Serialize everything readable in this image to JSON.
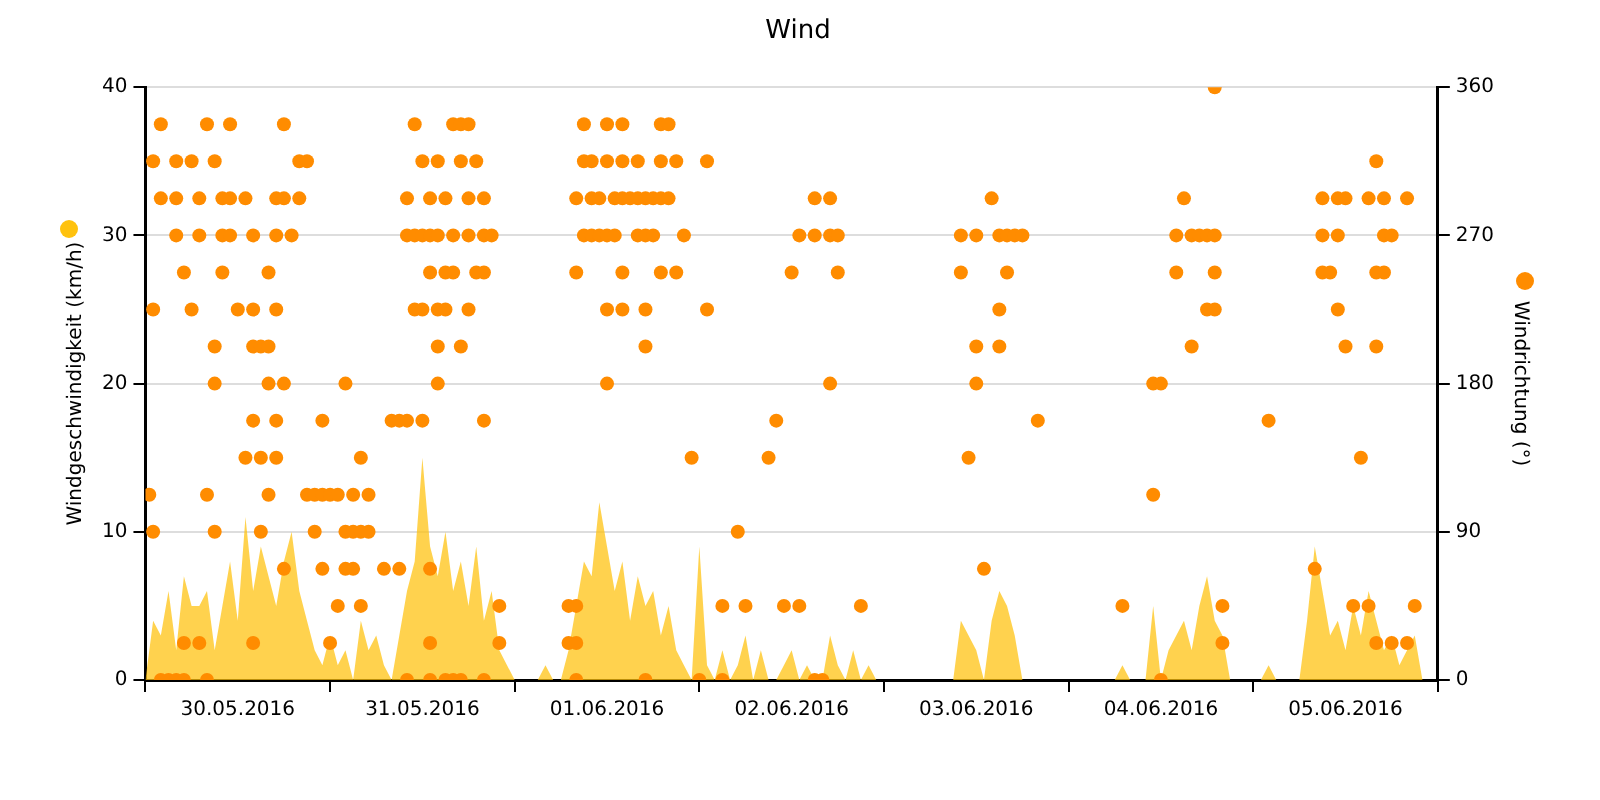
{
  "chart_data": {
    "type": "area",
    "title": "Wind",
    "ylabel": "Windgeschwindigkeit (km/h)",
    "y2label": "Windrichtung (°)",
    "xlim": [
      "2016-05-30T00:00",
      "2016-06-06T00:00"
    ],
    "xticks": [
      {
        "value": "2016-05-30T00:00",
        "label": null
      },
      {
        "value": "2016-05-30T12:00",
        "label": "30.05.2016"
      },
      {
        "value": "2016-05-31T00:00",
        "label": null
      },
      {
        "value": "2016-05-31T12:00",
        "label": "31.05.2016"
      },
      {
        "value": "2016-06-01T00:00",
        "label": null
      },
      {
        "value": "2016-06-01T12:00",
        "label": "01.06.2016"
      },
      {
        "value": "2016-06-02T00:00",
        "label": null
      },
      {
        "value": "2016-06-02T12:00",
        "label": "02.06.2016"
      },
      {
        "value": "2016-06-03T00:00",
        "label": null
      },
      {
        "value": "2016-06-03T12:00",
        "label": "03.06.2016"
      },
      {
        "value": "2016-06-04T00:00",
        "label": null
      },
      {
        "value": "2016-06-04T12:00",
        "label": "04.06.2016"
      },
      {
        "value": "2016-06-05T00:00",
        "label": null
      },
      {
        "value": "2016-06-05T12:00",
        "label": "05.06.2016"
      },
      {
        "value": "2016-06-06T00:00",
        "label": null
      }
    ],
    "ylim": [
      0,
      40
    ],
    "yticks": [
      0,
      10,
      20,
      30,
      40
    ],
    "y2lim": [
      0,
      360
    ],
    "y2ticks": [
      0,
      90,
      180,
      270,
      360
    ],
    "grid": "y",
    "legend": false,
    "x": [
      "2016-05-30T00:00",
      "2016-05-30T01:00",
      "2016-05-30T02:00",
      "2016-05-30T03:00",
      "2016-05-30T04:00",
      "2016-05-30T05:00",
      "2016-05-30T06:00",
      "2016-05-30T07:00",
      "2016-05-30T08:00",
      "2016-05-30T09:00",
      "2016-05-30T10:00",
      "2016-05-30T11:00",
      "2016-05-30T12:00",
      "2016-05-30T13:00",
      "2016-05-30T14:00",
      "2016-05-30T15:00",
      "2016-05-30T16:00",
      "2016-05-30T17:00",
      "2016-05-30T18:00",
      "2016-05-30T19:00",
      "2016-05-30T20:00",
      "2016-05-30T21:00",
      "2016-05-30T22:00",
      "2016-05-30T23:00",
      "2016-05-31T00:00",
      "2016-05-31T01:00",
      "2016-05-31T02:00",
      "2016-05-31T03:00",
      "2016-05-31T04:00",
      "2016-05-31T05:00",
      "2016-05-31T06:00",
      "2016-05-31T07:00",
      "2016-05-31T08:00",
      "2016-05-31T09:00",
      "2016-05-31T10:00",
      "2016-05-31T11:00",
      "2016-05-31T12:00",
      "2016-05-31T13:00",
      "2016-05-31T14:00",
      "2016-05-31T15:00",
      "2016-05-31T16:00",
      "2016-05-31T17:00",
      "2016-05-31T18:00",
      "2016-05-31T19:00",
      "2016-05-31T20:00",
      "2016-05-31T21:00",
      "2016-05-31T22:00",
      "2016-05-31T23:00",
      "2016-06-01T00:00",
      "2016-06-01T01:00",
      "2016-06-01T02:00",
      "2016-06-01T03:00",
      "2016-06-01T04:00",
      "2016-06-01T05:00",
      "2016-06-01T06:00",
      "2016-06-01T07:00",
      "2016-06-01T08:00",
      "2016-06-01T09:00",
      "2016-06-01T10:00",
      "2016-06-01T11:00",
      "2016-06-01T12:00",
      "2016-06-01T13:00",
      "2016-06-01T14:00",
      "2016-06-01T15:00",
      "2016-06-01T16:00",
      "2016-06-01T17:00",
      "2016-06-01T18:00",
      "2016-06-01T19:00",
      "2016-06-01T20:00",
      "2016-06-01T21:00",
      "2016-06-01T22:00",
      "2016-06-01T23:00",
      "2016-06-02T00:00",
      "2016-06-02T01:00",
      "2016-06-02T02:00",
      "2016-06-02T03:00",
      "2016-06-02T04:00",
      "2016-06-02T05:00",
      "2016-06-02T06:00",
      "2016-06-02T07:00",
      "2016-06-02T08:00",
      "2016-06-02T09:00",
      "2016-06-02T10:00",
      "2016-06-02T11:00",
      "2016-06-02T12:00",
      "2016-06-02T13:00",
      "2016-06-02T14:00",
      "2016-06-02T15:00",
      "2016-06-02T16:00",
      "2016-06-02T17:00",
      "2016-06-02T18:00",
      "2016-06-02T19:00",
      "2016-06-02T20:00",
      "2016-06-02T21:00",
      "2016-06-02T22:00",
      "2016-06-02T23:00",
      "2016-06-03T00:00",
      "2016-06-03T01:00",
      "2016-06-03T02:00",
      "2016-06-03T03:00",
      "2016-06-03T04:00",
      "2016-06-03T05:00",
      "2016-06-03T06:00",
      "2016-06-03T07:00",
      "2016-06-03T08:00",
      "2016-06-03T09:00",
      "2016-06-03T10:00",
      "2016-06-03T11:00",
      "2016-06-03T12:00",
      "2016-06-03T13:00",
      "2016-06-03T14:00",
      "2016-06-03T15:00",
      "2016-06-03T16:00",
      "2016-06-03T17:00",
      "2016-06-03T18:00",
      "2016-06-03T19:00",
      "2016-06-03T20:00",
      "2016-06-03T21:00",
      "2016-06-03T22:00",
      "2016-06-03T23:00",
      "2016-06-04T00:00",
      "2016-06-04T01:00",
      "2016-06-04T02:00",
      "2016-06-04T03:00",
      "2016-06-04T04:00",
      "2016-06-04T05:00",
      "2016-06-04T06:00",
      "2016-06-04T07:00",
      "2016-06-04T08:00",
      "2016-06-04T09:00",
      "2016-06-04T10:00",
      "2016-06-04T11:00",
      "2016-06-04T12:00",
      "2016-06-04T13:00",
      "2016-06-04T14:00",
      "2016-06-04T15:00",
      "2016-06-04T16:00",
      "2016-06-04T17:00",
      "2016-06-04T18:00",
      "2016-06-04T19:00",
      "2016-06-04T20:00",
      "2016-06-04T21:00",
      "2016-06-04T22:00",
      "2016-06-04T23:00",
      "2016-06-05T00:00",
      "2016-06-05T01:00",
      "2016-06-05T02:00",
      "2016-06-05T03:00",
      "2016-06-05T04:00",
      "2016-06-05T05:00",
      "2016-06-05T06:00",
      "2016-06-05T07:00",
      "2016-06-05T08:00",
      "2016-06-05T09:00",
      "2016-06-05T10:00",
      "2016-06-05T11:00",
      "2016-06-05T12:00",
      "2016-06-05T13:00",
      "2016-06-05T14:00",
      "2016-06-05T15:00",
      "2016-06-05T16:00",
      "2016-06-05T17:00",
      "2016-06-05T18:00",
      "2016-06-05T19:00",
      "2016-06-05T20:00",
      "2016-06-05T21:00",
      "2016-06-05T22:00",
      "2016-06-05T23:00"
    ],
    "series": [
      {
        "color": "#ffc20e",
        "values": [
          0,
          4,
          3,
          6,
          2,
          7,
          5,
          5,
          6,
          2,
          5,
          8,
          4,
          11,
          6,
          9,
          7,
          5,
          8,
          10,
          6,
          4,
          2,
          1,
          3,
          1,
          2,
          0,
          4,
          2,
          3,
          1,
          0,
          3,
          6,
          8,
          15,
          9,
          7,
          10,
          6,
          8,
          5,
          9,
          4,
          6,
          2,
          1,
          0,
          0,
          0,
          0,
          1,
          0,
          0,
          2,
          5,
          8,
          7,
          12,
          9,
          6,
          8,
          4,
          7,
          5,
          6,
          3,
          5,
          2,
          1,
          0,
          9,
          1,
          0,
          2,
          0,
          1,
          3,
          0,
          2,
          0,
          0,
          1,
          2,
          0,
          1,
          0,
          0,
          3,
          1,
          0,
          2,
          0,
          1,
          0,
          0,
          0,
          0,
          0,
          0,
          0,
          0,
          0,
          0,
          0,
          4,
          3,
          2,
          0,
          4,
          6,
          5,
          3,
          0,
          0,
          0,
          0,
          0,
          0,
          0,
          0,
          0,
          0,
          0,
          0,
          0,
          1,
          0,
          0,
          0,
          5,
          0,
          2,
          3,
          4,
          2,
          5,
          7,
          4,
          3,
          0,
          0,
          0,
          0,
          0,
          1,
          0,
          0,
          0,
          0,
          4,
          9,
          6,
          3,
          4,
          2,
          5,
          3,
          6,
          4,
          2,
          3,
          1,
          2,
          3,
          0,
          0
        ]
      },
      {
        "type": "scatter",
        "axis": "y2",
        "marker": "circle",
        "color": "#ff8c00",
        "x": [
          "2016-05-30T02:00",
          "2016-05-30T08:00",
          "2016-05-30T11:00",
          "2016-05-30T18:00",
          "2016-05-31T11:00",
          "2016-05-31T16:00",
          "2016-05-31T17:00",
          "2016-05-31T18:00",
          "2016-06-01T09:00",
          "2016-06-01T12:00",
          "2016-06-01T14:00",
          "2016-06-01T19:00",
          "2016-06-01T20:00",
          "2016-05-30T01:00",
          "2016-05-30T04:00",
          "2016-05-30T06:00",
          "2016-05-30T09:00",
          "2016-05-30T20:00",
          "2016-05-30T21:00",
          "2016-05-31T12:00",
          "2016-05-31T14:00",
          "2016-05-31T17:00",
          "2016-05-31T19:00",
          "2016-06-01T09:00",
          "2016-06-01T10:00",
          "2016-06-01T12:00",
          "2016-06-01T14:00",
          "2016-06-01T16:00",
          "2016-06-01T19:00",
          "2016-06-01T21:00",
          "2016-06-02T01:00",
          "2016-06-05T16:00",
          "2016-05-30T02:00",
          "2016-05-30T04:00",
          "2016-05-30T07:00",
          "2016-05-30T10:00",
          "2016-05-30T11:00",
          "2016-05-30T13:00",
          "2016-05-30T17:00",
          "2016-05-30T18:00",
          "2016-05-30T20:00",
          "2016-05-31T10:00",
          "2016-05-31T13:00",
          "2016-05-31T15:00",
          "2016-05-31T18:00",
          "2016-05-31T20:00",
          "2016-06-01T08:00",
          "2016-06-01T10:00",
          "2016-06-01T11:00",
          "2016-06-01T13:00",
          "2016-06-01T14:00",
          "2016-06-01T15:00",
          "2016-06-01T16:00",
          "2016-06-01T17:00",
          "2016-06-01T18:00",
          "2016-06-01T19:00",
          "2016-06-01T20:00",
          "2016-06-02T15:00",
          "2016-06-02T17:00",
          "2016-06-03T14:00",
          "2016-06-04T15:00",
          "2016-06-05T09:00",
          "2016-06-05T11:00",
          "2016-06-05T12:00",
          "2016-06-05T15:00",
          "2016-06-05T17:00",
          "2016-06-05T20:00",
          "2016-05-30T04:00",
          "2016-05-30T07:00",
          "2016-05-30T10:00",
          "2016-05-30T11:00",
          "2016-05-30T14:00",
          "2016-05-30T17:00",
          "2016-05-30T19:00",
          "2016-05-31T10:00",
          "2016-05-31T11:00",
          "2016-05-31T12:00",
          "2016-05-31T13:00",
          "2016-05-31T14:00",
          "2016-05-31T16:00",
          "2016-05-31T18:00",
          "2016-05-31T20:00",
          "2016-05-31T21:00",
          "2016-06-01T09:00",
          "2016-06-01T10:00",
          "2016-06-01T11:00",
          "2016-06-01T12:00",
          "2016-06-01T13:00",
          "2016-06-01T16:00",
          "2016-06-01T17:00",
          "2016-06-01T18:00",
          "2016-06-01T22:00",
          "2016-06-02T13:00",
          "2016-06-02T15:00",
          "2016-06-02T17:00",
          "2016-06-02T18:00",
          "2016-06-03T10:00",
          "2016-06-03T12:00",
          "2016-06-03T15:00",
          "2016-06-03T16:00",
          "2016-06-03T17:00",
          "2016-06-03T18:00",
          "2016-06-04T14:00",
          "2016-06-04T16:00",
          "2016-06-04T17:00",
          "2016-06-04T18:00",
          "2016-06-04T19:00",
          "2016-06-05T09:00",
          "2016-06-05T11:00",
          "2016-06-05T17:00",
          "2016-06-05T18:00",
          "2016-05-30T05:00",
          "2016-05-30T10:00",
          "2016-05-30T16:00",
          "2016-05-31T13:00",
          "2016-05-31T15:00",
          "2016-05-31T16:00",
          "2016-05-31T19:00",
          "2016-05-31T20:00",
          "2016-06-01T08:00",
          "2016-06-01T14:00",
          "2016-06-01T19:00",
          "2016-06-01T21:00",
          "2016-06-02T12:00",
          "2016-06-02T18:00",
          "2016-06-03T10:00",
          "2016-06-03T16:00",
          "2016-06-04T14:00",
          "2016-06-04T19:00",
          "2016-06-05T09:00",
          "2016-06-05T10:00",
          "2016-06-05T16:00",
          "2016-06-05T17:00",
          "2016-05-30T01:00",
          "2016-05-30T06:00",
          "2016-05-30T12:00",
          "2016-05-30T14:00",
          "2016-05-30T17:00",
          "2016-05-31T11:00",
          "2016-05-31T12:00",
          "2016-05-31T14:00",
          "2016-05-31T15:00",
          "2016-05-31T18:00",
          "2016-06-01T12:00",
          "2016-06-01T14:00",
          "2016-06-01T17:00",
          "2016-06-02T01:00",
          "2016-06-03T15:00",
          "2016-06-04T18:00",
          "2016-06-04T19:00",
          "2016-06-05T11:00",
          "2016-05-30T09:00",
          "2016-05-30T14:00",
          "2016-05-30T15:00",
          "2016-05-30T16:00",
          "2016-05-31T14:00",
          "2016-05-31T17:00",
          "2016-06-01T17:00",
          "2016-06-03T12:00",
          "2016-06-03T15:00",
          "2016-06-04T16:00",
          "2016-06-05T12:00",
          "2016-06-05T16:00",
          "2016-05-30T09:00",
          "2016-05-30T16:00",
          "2016-05-30T18:00",
          "2016-05-31T02:00",
          "2016-05-31T14:00",
          "2016-06-01T12:00",
          "2016-06-02T17:00",
          "2016-06-03T12:00",
          "2016-06-04T11:00",
          "2016-06-04T12:00",
          "2016-05-30T14:00",
          "2016-05-30T17:00",
          "2016-05-30T23:00",
          "2016-05-31T08:00",
          "2016-05-31T09:00",
          "2016-05-31T10:00",
          "2016-05-31T12:00",
          "2016-05-31T20:00",
          "2016-06-02T10:00",
          "2016-06-03T20:00",
          "2016-06-05T02:00",
          "2016-05-30T13:00",
          "2016-05-30T15:00",
          "2016-05-30T17:00",
          "2016-05-31T04:00",
          "2016-06-01T23:00",
          "2016-06-02T09:00",
          "2016-06-03T11:00",
          "2016-06-05T14:00",
          "2016-05-30T00:30",
          "2016-05-30T08:00",
          "2016-05-30T16:00",
          "2016-05-30T21:00",
          "2016-05-30T22:00",
          "2016-05-30T23:00",
          "2016-05-31T00:00",
          "2016-05-31T01:00",
          "2016-05-31T03:00",
          "2016-05-31T05:00",
          "2016-06-04T11:00",
          "2016-05-30T01:00",
          "2016-05-30T09:00",
          "2016-05-30T15:00",
          "2016-05-30T22:00",
          "2016-05-31T02:00",
          "2016-05-31T03:00",
          "2016-05-31T04:00",
          "2016-05-31T05:00",
          "2016-06-02T05:00",
          "2016-05-30T18:00",
          "2016-05-30T23:00",
          "2016-05-31T02:00",
          "2016-05-31T03:00",
          "2016-05-31T07:00",
          "2016-05-31T09:00",
          "2016-05-31T13:00",
          "2016-06-03T13:00",
          "2016-06-05T08:00",
          "2016-05-31T01:00",
          "2016-05-31T04:00",
          "2016-05-31T22:00",
          "2016-06-01T07:00",
          "2016-06-01T08:00",
          "2016-06-02T03:00",
          "2016-06-02T06:00",
          "2016-06-02T11:00",
          "2016-06-02T13:00",
          "2016-06-02T21:00",
          "2016-06-04T07:00",
          "2016-06-04T20:00",
          "2016-06-05T13:00",
          "2016-06-05T15:00",
          "2016-06-05T21:00",
          "2016-05-30T05:00",
          "2016-05-30T07:00",
          "2016-05-30T14:00",
          "2016-05-31T00:00",
          "2016-05-31T13:00",
          "2016-05-31T22:00",
          "2016-06-01T07:00",
          "2016-06-01T08:00",
          "2016-06-04T20:00",
          "2016-06-05T16:00",
          "2016-06-05T18:00",
          "2016-06-05T20:00",
          "2016-05-30T02:00",
          "2016-05-30T03:00",
          "2016-05-30T04:00",
          "2016-05-30T05:00",
          "2016-05-30T08:00",
          "2016-05-31T10:00",
          "2016-05-31T13:00",
          "2016-05-31T15:00",
          "2016-05-31T16:00",
          "2016-05-31T17:00",
          "2016-05-31T20:00",
          "2016-06-01T08:00",
          "2016-06-01T17:00",
          "2016-06-02T00:00",
          "2016-06-02T03:00",
          "2016-06-02T15:00",
          "2016-06-02T16:00",
          "2016-06-04T12:00",
          "2016-06-04T19:00"
        ],
        "values": [
          337.5,
          337.5,
          337.5,
          337.5,
          337.5,
          337.5,
          337.5,
          337.5,
          337.5,
          337.5,
          337.5,
          337.5,
          337.5,
          315,
          315,
          315,
          315,
          315,
          315,
          315,
          315,
          315,
          315,
          315,
          315,
          315,
          315,
          315,
          315,
          315,
          315,
          315,
          292.5,
          292.5,
          292.5,
          292.5,
          292.5,
          292.5,
          292.5,
          292.5,
          292.5,
          292.5,
          292.5,
          292.5,
          292.5,
          292.5,
          292.5,
          292.5,
          292.5,
          292.5,
          292.5,
          292.5,
          292.5,
          292.5,
          292.5,
          292.5,
          292.5,
          292.5,
          292.5,
          292.5,
          292.5,
          292.5,
          292.5,
          292.5,
          292.5,
          292.5,
          292.5,
          270,
          270,
          270,
          270,
          270,
          270,
          270,
          270,
          270,
          270,
          270,
          270,
          270,
          270,
          270,
          270,
          270,
          270,
          270,
          270,
          270,
          270,
          270,
          270,
          270,
          270,
          270,
          270,
          270,
          270,
          270,
          270,
          270,
          270,
          270,
          270,
          270,
          270,
          270,
          270,
          270,
          270,
          270,
          270,
          247.5,
          247.5,
          247.5,
          247.5,
          247.5,
          247.5,
          247.5,
          247.5,
          247.5,
          247.5,
          247.5,
          247.5,
          247.5,
          247.5,
          247.5,
          247.5,
          247.5,
          247.5,
          247.5,
          247.5,
          247.5,
          247.5,
          225,
          225,
          225,
          225,
          225,
          225,
          225,
          225,
          225,
          225,
          225,
          225,
          225,
          225,
          225,
          225,
          225,
          225,
          202.5,
          202.5,
          202.5,
          202.5,
          202.5,
          202.5,
          202.5,
          202.5,
          202.5,
          202.5,
          202.5,
          202.5,
          180,
          180,
          180,
          180,
          180,
          180,
          180,
          180,
          180,
          180,
          157.5,
          157.5,
          157.5,
          157.5,
          157.5,
          157.5,
          157.5,
          157.5,
          157.5,
          157.5,
          157.5,
          135,
          135,
          135,
          135,
          135,
          135,
          135,
          135,
          112.5,
          112.5,
          112.5,
          112.5,
          112.5,
          112.5,
          112.5,
          112.5,
          112.5,
          112.5,
          112.5,
          90,
          90,
          90,
          90,
          90,
          90,
          90,
          90,
          90,
          67.5,
          67.5,
          67.5,
          67.5,
          67.5,
          67.5,
          67.5,
          67.5,
          67.5,
          45,
          45,
          45,
          45,
          45,
          45,
          45,
          45,
          45,
          45,
          45,
          45,
          45,
          45,
          45,
          22.5,
          22.5,
          22.5,
          22.5,
          22.5,
          22.5,
          22.5,
          22.5,
          22.5,
          22.5,
          22.5,
          22.5,
          0,
          0,
          0,
          0,
          0,
          0,
          0,
          0,
          0,
          0,
          0,
          0,
          0,
          0,
          0,
          0,
          0,
          0,
          360
        ]
      }
    ]
  }
}
